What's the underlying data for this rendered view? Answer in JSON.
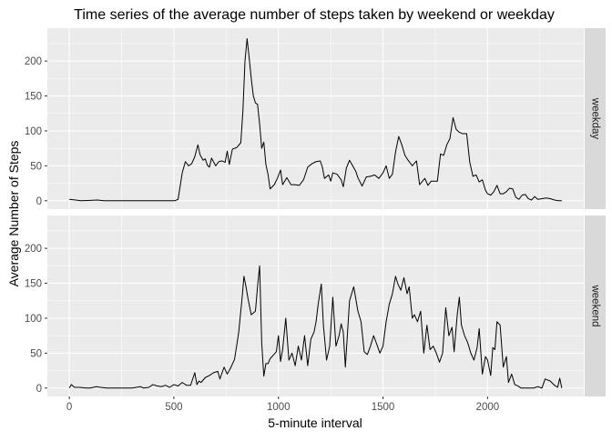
{
  "chart_data": {
    "type": "line",
    "title": "Time series of the average number of steps taken by weekend or weekday",
    "xlabel": "5-minute interval",
    "ylabel": "Average Number of Steps",
    "xlim": [
      -105,
      2460
    ],
    "ylim": [
      -12,
      247
    ],
    "x_ticks": [
      0,
      500,
      1000,
      1500,
      2000
    ],
    "y_ticks": [
      0,
      50,
      100,
      150,
      200
    ],
    "grid": true,
    "colors": {
      "panel_bg": "#ebebeb",
      "strip_bg": "#d9d9d9",
      "grid": "#ffffff",
      "line": "#000000",
      "text": "#4d4d4d"
    },
    "panels": [
      {
        "name": "weekday",
        "points": [
          [
            0,
            2
          ],
          [
            30,
            1
          ],
          [
            55,
            0
          ],
          [
            100,
            0.5
          ],
          [
            135,
            1
          ],
          [
            165,
            0
          ],
          [
            200,
            0
          ],
          [
            250,
            0
          ],
          [
            300,
            0
          ],
          [
            340,
            0
          ],
          [
            380,
            0
          ],
          [
            420,
            0
          ],
          [
            460,
            0
          ],
          [
            505,
            0
          ],
          [
            520,
            2
          ],
          [
            540,
            40
          ],
          [
            555,
            56
          ],
          [
            570,
            50
          ],
          [
            585,
            53
          ],
          [
            600,
            63
          ],
          [
            615,
            80
          ],
          [
            625,
            66
          ],
          [
            640,
            58
          ],
          [
            650,
            60
          ],
          [
            660,
            51
          ],
          [
            670,
            48
          ],
          [
            680,
            61
          ],
          [
            700,
            50
          ],
          [
            715,
            56
          ],
          [
            730,
            57
          ],
          [
            745,
            55
          ],
          [
            755,
            71
          ],
          [
            765,
            52
          ],
          [
            780,
            74
          ],
          [
            800,
            76
          ],
          [
            820,
            83
          ],
          [
            830,
            128
          ],
          [
            840,
            200
          ],
          [
            850,
            232
          ],
          [
            860,
            205
          ],
          [
            870,
            175
          ],
          [
            880,
            150
          ],
          [
            890,
            140
          ],
          [
            900,
            138
          ],
          [
            910,
            110
          ],
          [
            920,
            75
          ],
          [
            930,
            84
          ],
          [
            940,
            52
          ],
          [
            950,
            38
          ],
          [
            960,
            17
          ],
          [
            980,
            23
          ],
          [
            995,
            32
          ],
          [
            1010,
            44
          ],
          [
            1020,
            23
          ],
          [
            1040,
            33
          ],
          [
            1060,
            23
          ],
          [
            1080,
            23
          ],
          [
            1100,
            22
          ],
          [
            1120,
            30
          ],
          [
            1140,
            48
          ],
          [
            1160,
            53
          ],
          [
            1180,
            56
          ],
          [
            1200,
            57
          ],
          [
            1210,
            48
          ],
          [
            1220,
            32
          ],
          [
            1240,
            37
          ],
          [
            1250,
            28
          ],
          [
            1260,
            40
          ],
          [
            1280,
            38
          ],
          [
            1300,
            30
          ],
          [
            1310,
            20
          ],
          [
            1325,
            47
          ],
          [
            1340,
            58
          ],
          [
            1355,
            50
          ],
          [
            1370,
            42
          ],
          [
            1380,
            33
          ],
          [
            1400,
            21
          ],
          [
            1420,
            34
          ],
          [
            1440,
            35
          ],
          [
            1460,
            37
          ],
          [
            1480,
            32
          ],
          [
            1500,
            40
          ],
          [
            1515,
            50
          ],
          [
            1530,
            32
          ],
          [
            1545,
            38
          ],
          [
            1560,
            70
          ],
          [
            1575,
            92
          ],
          [
            1590,
            80
          ],
          [
            1605,
            65
          ],
          [
            1620,
            58
          ],
          [
            1640,
            50
          ],
          [
            1660,
            57
          ],
          [
            1675,
            23
          ],
          [
            1700,
            32
          ],
          [
            1715,
            22
          ],
          [
            1730,
            28
          ],
          [
            1745,
            28
          ],
          [
            1760,
            28
          ],
          [
            1775,
            67
          ],
          [
            1790,
            65
          ],
          [
            1805,
            80
          ],
          [
            1820,
            89
          ],
          [
            1835,
            119
          ],
          [
            1850,
            102
          ],
          [
            1865,
            98
          ],
          [
            1880,
            96
          ],
          [
            1900,
            96
          ],
          [
            1915,
            55
          ],
          [
            1930,
            35
          ],
          [
            1945,
            37
          ],
          [
            1960,
            27
          ],
          [
            1975,
            30
          ],
          [
            1990,
            15
          ],
          [
            2000,
            10
          ],
          [
            2015,
            8
          ],
          [
            2030,
            13
          ],
          [
            2045,
            22
          ],
          [
            2060,
            10
          ],
          [
            2075,
            10
          ],
          [
            2090,
            13
          ],
          [
            2105,
            18
          ],
          [
            2120,
            17
          ],
          [
            2135,
            5
          ],
          [
            2150,
            2
          ],
          [
            2165,
            8
          ],
          [
            2180,
            9
          ],
          [
            2195,
            3
          ],
          [
            2210,
            1
          ],
          [
            2225,
            6
          ],
          [
            2240,
            2
          ],
          [
            2260,
            3
          ],
          [
            2280,
            4
          ],
          [
            2300,
            3
          ],
          [
            2320,
            1
          ],
          [
            2340,
            0
          ],
          [
            2355,
            0
          ]
        ]
      },
      {
        "name": "weekend",
        "points": [
          [
            0,
            0
          ],
          [
            10,
            5
          ],
          [
            25,
            1
          ],
          [
            50,
            1
          ],
          [
            80,
            0
          ],
          [
            100,
            0
          ],
          [
            130,
            2
          ],
          [
            150,
            1
          ],
          [
            180,
            0
          ],
          [
            210,
            0
          ],
          [
            250,
            0
          ],
          [
            300,
            0
          ],
          [
            320,
            1
          ],
          [
            340,
            2
          ],
          [
            355,
            0
          ],
          [
            380,
            1
          ],
          [
            400,
            5
          ],
          [
            420,
            3
          ],
          [
            440,
            2
          ],
          [
            460,
            4
          ],
          [
            480,
            1
          ],
          [
            500,
            5
          ],
          [
            520,
            3
          ],
          [
            540,
            8
          ],
          [
            560,
            4
          ],
          [
            580,
            4
          ],
          [
            600,
            22
          ],
          [
            610,
            5
          ],
          [
            620,
            10
          ],
          [
            630,
            8
          ],
          [
            650,
            15
          ],
          [
            670,
            18
          ],
          [
            690,
            22
          ],
          [
            710,
            24
          ],
          [
            720,
            13
          ],
          [
            740,
            30
          ],
          [
            755,
            20
          ],
          [
            770,
            28
          ],
          [
            790,
            41
          ],
          [
            800,
            60
          ],
          [
            810,
            80
          ],
          [
            825,
            125
          ],
          [
            835,
            160
          ],
          [
            845,
            145
          ],
          [
            855,
            127
          ],
          [
            870,
            105
          ],
          [
            890,
            110
          ],
          [
            900,
            145
          ],
          [
            910,
            175
          ],
          [
            920,
            65
          ],
          [
            930,
            17
          ],
          [
            940,
            35
          ],
          [
            950,
            35
          ],
          [
            960,
            42
          ],
          [
            975,
            47
          ],
          [
            990,
            52
          ],
          [
            1000,
            75
          ],
          [
            1010,
            38
          ],
          [
            1020,
            55
          ],
          [
            1035,
            100
          ],
          [
            1050,
            40
          ],
          [
            1065,
            50
          ],
          [
            1080,
            32
          ],
          [
            1095,
            60
          ],
          [
            1110,
            40
          ],
          [
            1125,
            75
          ],
          [
            1140,
            32
          ],
          [
            1155,
            70
          ],
          [
            1170,
            80
          ],
          [
            1180,
            95
          ],
          [
            1190,
            120
          ],
          [
            1205,
            149
          ],
          [
            1215,
            90
          ],
          [
            1230,
            40
          ],
          [
            1245,
            60
          ],
          [
            1260,
            130
          ],
          [
            1275,
            60
          ],
          [
            1290,
            75
          ],
          [
            1300,
            92
          ],
          [
            1310,
            80
          ],
          [
            1320,
            30
          ],
          [
            1340,
            125
          ],
          [
            1360,
            145
          ],
          [
            1380,
            110
          ],
          [
            1395,
            95
          ],
          [
            1410,
            52
          ],
          [
            1425,
            48
          ],
          [
            1440,
            60
          ],
          [
            1455,
            75
          ],
          [
            1470,
            63
          ],
          [
            1485,
            50
          ],
          [
            1500,
            60
          ],
          [
            1515,
            95
          ],
          [
            1530,
            120
          ],
          [
            1545,
            135
          ],
          [
            1560,
            160
          ],
          [
            1570,
            150
          ],
          [
            1585,
            140
          ],
          [
            1600,
            158
          ],
          [
            1615,
            135
          ],
          [
            1625,
            145
          ],
          [
            1640,
            100
          ],
          [
            1650,
            105
          ],
          [
            1665,
            95
          ],
          [
            1680,
            110
          ],
          [
            1695,
            50
          ],
          [
            1710,
            90
          ],
          [
            1725,
            55
          ],
          [
            1740,
            60
          ],
          [
            1755,
            50
          ],
          [
            1770,
            37
          ],
          [
            1785,
            50
          ],
          [
            1800,
            115
          ],
          [
            1815,
            75
          ],
          [
            1830,
            87
          ],
          [
            1840,
            52
          ],
          [
            1855,
            105
          ],
          [
            1865,
            130
          ],
          [
            1875,
            90
          ],
          [
            1890,
            75
          ],
          [
            1905,
            65
          ],
          [
            1920,
            50
          ],
          [
            1935,
            40
          ],
          [
            1950,
            58
          ],
          [
            1960,
            85
          ],
          [
            1975,
            20
          ],
          [
            1990,
            45
          ],
          [
            2000,
            40
          ],
          [
            2015,
            18
          ],
          [
            2025,
            58
          ],
          [
            2035,
            55
          ],
          [
            2045,
            95
          ],
          [
            2060,
            90
          ],
          [
            2075,
            30
          ],
          [
            2090,
            45
          ],
          [
            2100,
            8
          ],
          [
            2115,
            20
          ],
          [
            2130,
            5
          ],
          [
            2145,
            3
          ],
          [
            2160,
            0
          ],
          [
            2180,
            0
          ],
          [
            2200,
            0
          ],
          [
            2220,
            0
          ],
          [
            2240,
            2
          ],
          [
            2260,
            0
          ],
          [
            2275,
            13
          ],
          [
            2300,
            10
          ],
          [
            2320,
            4
          ],
          [
            2335,
            1
          ],
          [
            2345,
            14
          ],
          [
            2355,
            0
          ]
        ]
      }
    ]
  }
}
